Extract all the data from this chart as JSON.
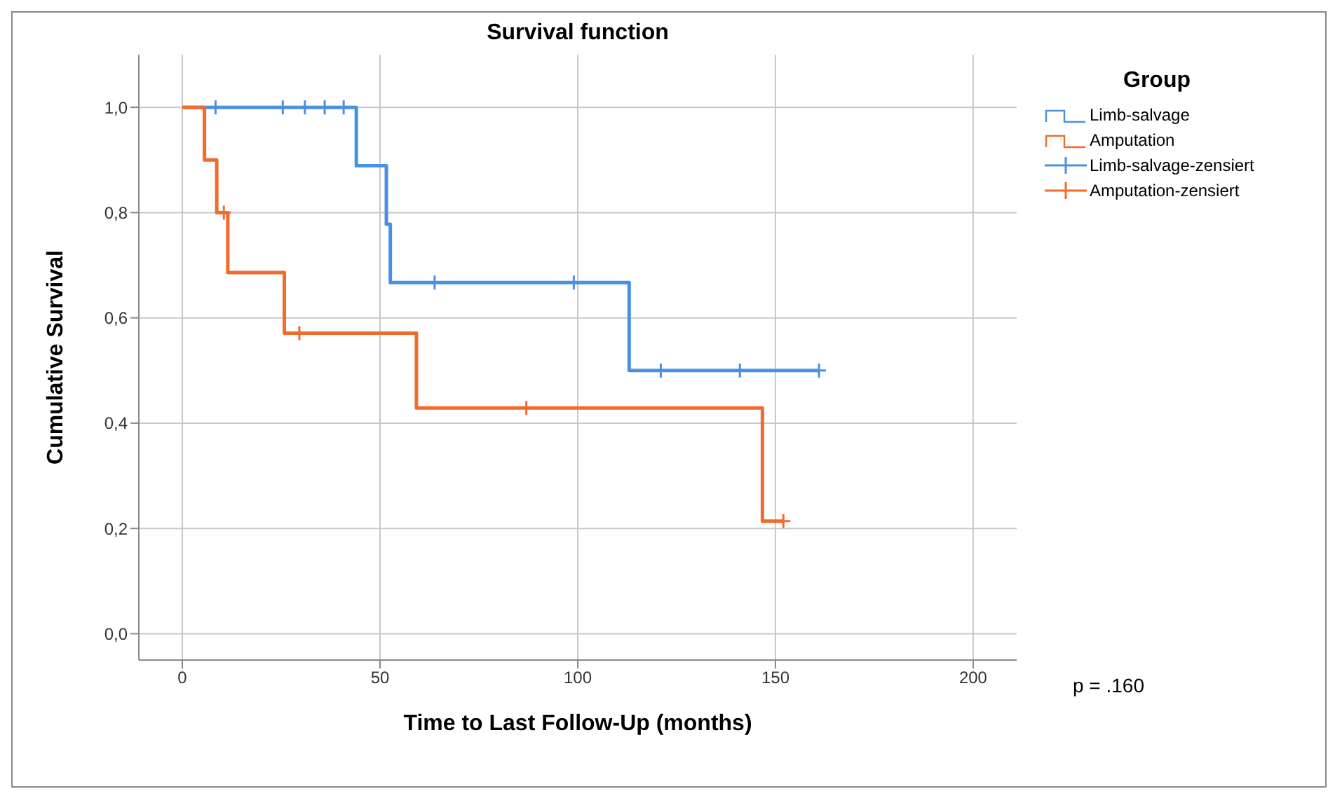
{
  "chart_data": {
    "type": "step",
    "title": "Survival function",
    "xlabel": "Time to Last Follow-Up (months)",
    "ylabel": "Cumulative Survival",
    "legend_title": "Group",
    "legend": "top right",
    "grid": true,
    "xlim": [
      -11,
      211
    ],
    "xticks": [
      0,
      50,
      100,
      150,
      200
    ],
    "ylim": [
      -0.05,
      1.1
    ],
    "yticks": [
      {
        "value": 0,
        "label": "0,0"
      },
      {
        "value": 0.2,
        "label": "0,2"
      },
      {
        "value": 0.4,
        "label": "0,4"
      },
      {
        "value": 0.6,
        "label": "0,6"
      },
      {
        "value": 0.8,
        "label": "0,8"
      },
      {
        "value": 1,
        "label": "1,0"
      }
    ],
    "annotations": [
      "p = .160"
    ],
    "series": [
      {
        "name": "Limb-salvage",
        "marker": "none",
        "color": "#4a90e2",
        "x": [
          0,
          44,
          51.6,
          52.6,
          113,
          161
        ],
        "values": [
          1,
          0.889,
          0.778,
          0.667,
          0.5,
          0.5
        ]
      },
      {
        "name": "Amputation",
        "marker": "none",
        "color": "#f26b2c",
        "x": [
          0,
          5.6,
          8.7,
          11.5,
          25.8,
          59.2,
          146.7,
          152
        ],
        "values": [
          1,
          0.9,
          0.8,
          0.686,
          0.571,
          0.429,
          0.214,
          0.214
        ]
      },
      {
        "name": "Limb-salvage-zensiert",
        "type": "scatter",
        "marker": "cross",
        "color": "#4a90e2",
        "x": [
          8.4,
          25.4,
          31,
          36,
          40.8,
          63.8,
          99,
          121,
          141,
          161
        ],
        "values": [
          1,
          1,
          1,
          1,
          1,
          0.667,
          0.667,
          0.5,
          0.5,
          0.5
        ]
      },
      {
        "name": "Amputation-zensiert",
        "type": "scatter",
        "marker": "cross",
        "color": "#f26b2c",
        "x": [
          10.5,
          29.6,
          87,
          152
        ],
        "values": [
          0.8,
          0.571,
          0.429,
          0.214
        ]
      }
    ]
  }
}
